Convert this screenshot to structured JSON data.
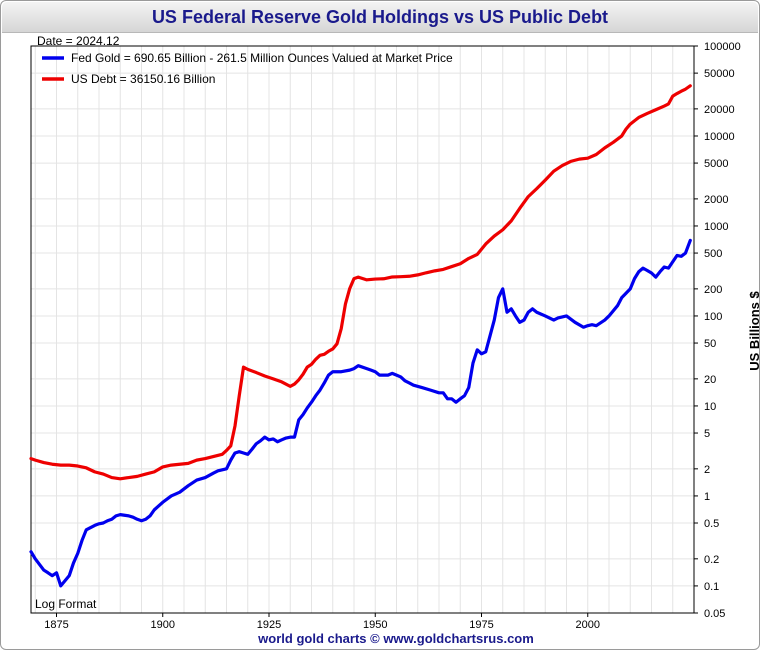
{
  "chart_data": {
    "type": "line",
    "title": "US Federal Reserve Gold Holdings vs US Public Debt",
    "ylabel": "US Billions $",
    "xlabel": "",
    "date_label": "Date = 2024.12",
    "scale_note": "Log Format",
    "footer": "world gold charts © www.goldchartsrus.com",
    "y_scale": "log",
    "xlim": [
      1869,
      2025
    ],
    "ylim": [
      0.05,
      100000
    ],
    "grid": true,
    "legend_position": "top-left",
    "x_ticks": [
      1875,
      1900,
      1925,
      1950,
      1975,
      2000
    ],
    "x_tick_labels": [
      "1875",
      "1900",
      "1925",
      "1950",
      "1975",
      "2000"
    ],
    "y_ticks": [
      0.05,
      0.1,
      0.2,
      0.5,
      1,
      2,
      5,
      10,
      20,
      50,
      100,
      200,
      500,
      1000,
      2000,
      5000,
      10000,
      20000,
      50000,
      100000
    ],
    "y_tick_labels": [
      "0.05",
      "0.1",
      "0.2",
      "0.5",
      "1",
      "2",
      "5",
      "10",
      "20",
      "50",
      "100",
      "200",
      "500",
      "1000",
      "2000",
      "5000",
      "10000",
      "20000",
      "50000",
      "100000"
    ],
    "series": [
      {
        "name": "Fed Gold = 690.65 Billion - 261.5 Million Ounces Valued at Market Price",
        "color": "#0000ee",
        "x": [
          1869,
          1870,
          1872,
          1873,
          1874,
          1875,
          1876,
          1878,
          1879,
          1880,
          1881,
          1882,
          1884,
          1885,
          1886,
          1887,
          1888,
          1889,
          1890,
          1891,
          1892,
          1893,
          1894,
          1895,
          1896,
          1897,
          1898,
          1900,
          1902,
          1904,
          1906,
          1908,
          1910,
          1912,
          1913,
          1915,
          1916,
          1917,
          1918,
          1919,
          1920,
          1921,
          1922,
          1923,
          1924,
          1925,
          1926,
          1927,
          1928,
          1929,
          1930,
          1931,
          1932,
          1933,
          1934,
          1935,
          1936,
          1937,
          1938,
          1939,
          1940,
          1941,
          1942,
          1944,
          1945,
          1946,
          1948,
          1949,
          1950,
          1951,
          1952,
          1953,
          1954,
          1955,
          1956,
          1957,
          1958,
          1959,
          1961,
          1963,
          1965,
          1966,
          1967,
          1968,
          1969,
          1970,
          1971,
          1972,
          1973,
          1974,
          1975,
          1976,
          1977,
          1978,
          1979,
          1980,
          1981,
          1982,
          1983,
          1984,
          1985,
          1986,
          1987,
          1988,
          1990,
          1992,
          1993,
          1995,
          1997,
          1999,
          2000,
          2001,
          2002,
          2004,
          2005,
          2007,
          2008,
          2010,
          2011,
          2012,
          2013,
          2014,
          2015,
          2016,
          2017,
          2018,
          2019,
          2020,
          2021,
          2022,
          2023,
          2024.12
        ],
        "values": [
          0.24,
          0.2,
          0.15,
          0.14,
          0.13,
          0.14,
          0.1,
          0.13,
          0.18,
          0.23,
          0.32,
          0.42,
          0.47,
          0.49,
          0.5,
          0.53,
          0.55,
          0.6,
          0.62,
          0.61,
          0.6,
          0.58,
          0.55,
          0.53,
          0.55,
          0.6,
          0.7,
          0.85,
          1.0,
          1.1,
          1.3,
          1.5,
          1.6,
          1.8,
          1.9,
          2.0,
          2.5,
          3.0,
          3.1,
          3.0,
          2.9,
          3.3,
          3.8,
          4.1,
          4.5,
          4.2,
          4.3,
          4.0,
          4.2,
          4.4,
          4.5,
          4.5,
          7.0,
          8.0,
          9.5,
          11,
          13,
          15,
          18,
          22,
          24,
          24,
          24,
          25,
          26,
          28,
          26,
          25,
          24,
          22,
          22,
          22,
          23,
          22,
          21,
          19,
          18,
          17,
          16,
          15,
          14,
          14,
          12,
          12,
          11,
          12,
          13,
          16,
          30,
          42,
          38,
          40,
          60,
          90,
          160,
          200,
          110,
          120,
          100,
          85,
          90,
          110,
          120,
          110,
          100,
          90,
          95,
          100,
          85,
          75,
          78,
          80,
          78,
          90,
          100,
          130,
          160,
          200,
          260,
          310,
          340,
          320,
          300,
          270,
          310,
          350,
          340,
          400,
          470,
          460,
          500,
          690.65
        ]
      },
      {
        "name": "US Debt = 36150.16 Billion",
        "color": "#ee0000",
        "x": [
          1869,
          1870,
          1872,
          1874,
          1876,
          1878,
          1880,
          1882,
          1884,
          1886,
          1888,
          1890,
          1892,
          1894,
          1896,
          1898,
          1900,
          1902,
          1904,
          1906,
          1908,
          1910,
          1912,
          1914,
          1915,
          1916,
          1917,
          1918,
          1919,
          1920,
          1922,
          1924,
          1926,
          1928,
          1930,
          1931,
          1932,
          1933,
          1934,
          1935,
          1936,
          1937,
          1938,
          1939,
          1940,
          1941,
          1942,
          1943,
          1944,
          1945,
          1946,
          1948,
          1950,
          1952,
          1954,
          1956,
          1958,
          1960,
          1962,
          1964,
          1966,
          1968,
          1970,
          1972,
          1974,
          1976,
          1978,
          1980,
          1982,
          1984,
          1986,
          1988,
          1990,
          1992,
          1994,
          1996,
          1998,
          2000,
          2002,
          2004,
          2006,
          2008,
          2009,
          2010,
          2012,
          2014,
          2016,
          2018,
          2019,
          2020,
          2021,
          2022,
          2023,
          2024.12
        ],
        "values": [
          2.6,
          2.5,
          2.35,
          2.25,
          2.2,
          2.2,
          2.15,
          2.05,
          1.85,
          1.75,
          1.6,
          1.55,
          1.6,
          1.65,
          1.75,
          1.85,
          2.1,
          2.2,
          2.25,
          2.3,
          2.5,
          2.6,
          2.75,
          2.9,
          3.2,
          3.6,
          6.0,
          13,
          27,
          25.5,
          23.5,
          21.5,
          20,
          18.5,
          16.5,
          17.5,
          19.5,
          22.5,
          27,
          29,
          33,
          36.5,
          37.5,
          40.5,
          43,
          49,
          72.5,
          137,
          202,
          260,
          270,
          252,
          257,
          259,
          271,
          273,
          276,
          286,
          302,
          317,
          329,
          354,
          380,
          436,
          483,
          631,
          772,
          908,
          1140,
          1570,
          2120,
          2600,
          3230,
          4060,
          4690,
          5220,
          5530,
          5670,
          6230,
          7380,
          8510,
          10020,
          11910,
          13560,
          16070,
          17820,
          19570,
          21520,
          22720,
          27750,
          29620,
          31420,
          33170,
          36150.16
        ]
      }
    ]
  }
}
